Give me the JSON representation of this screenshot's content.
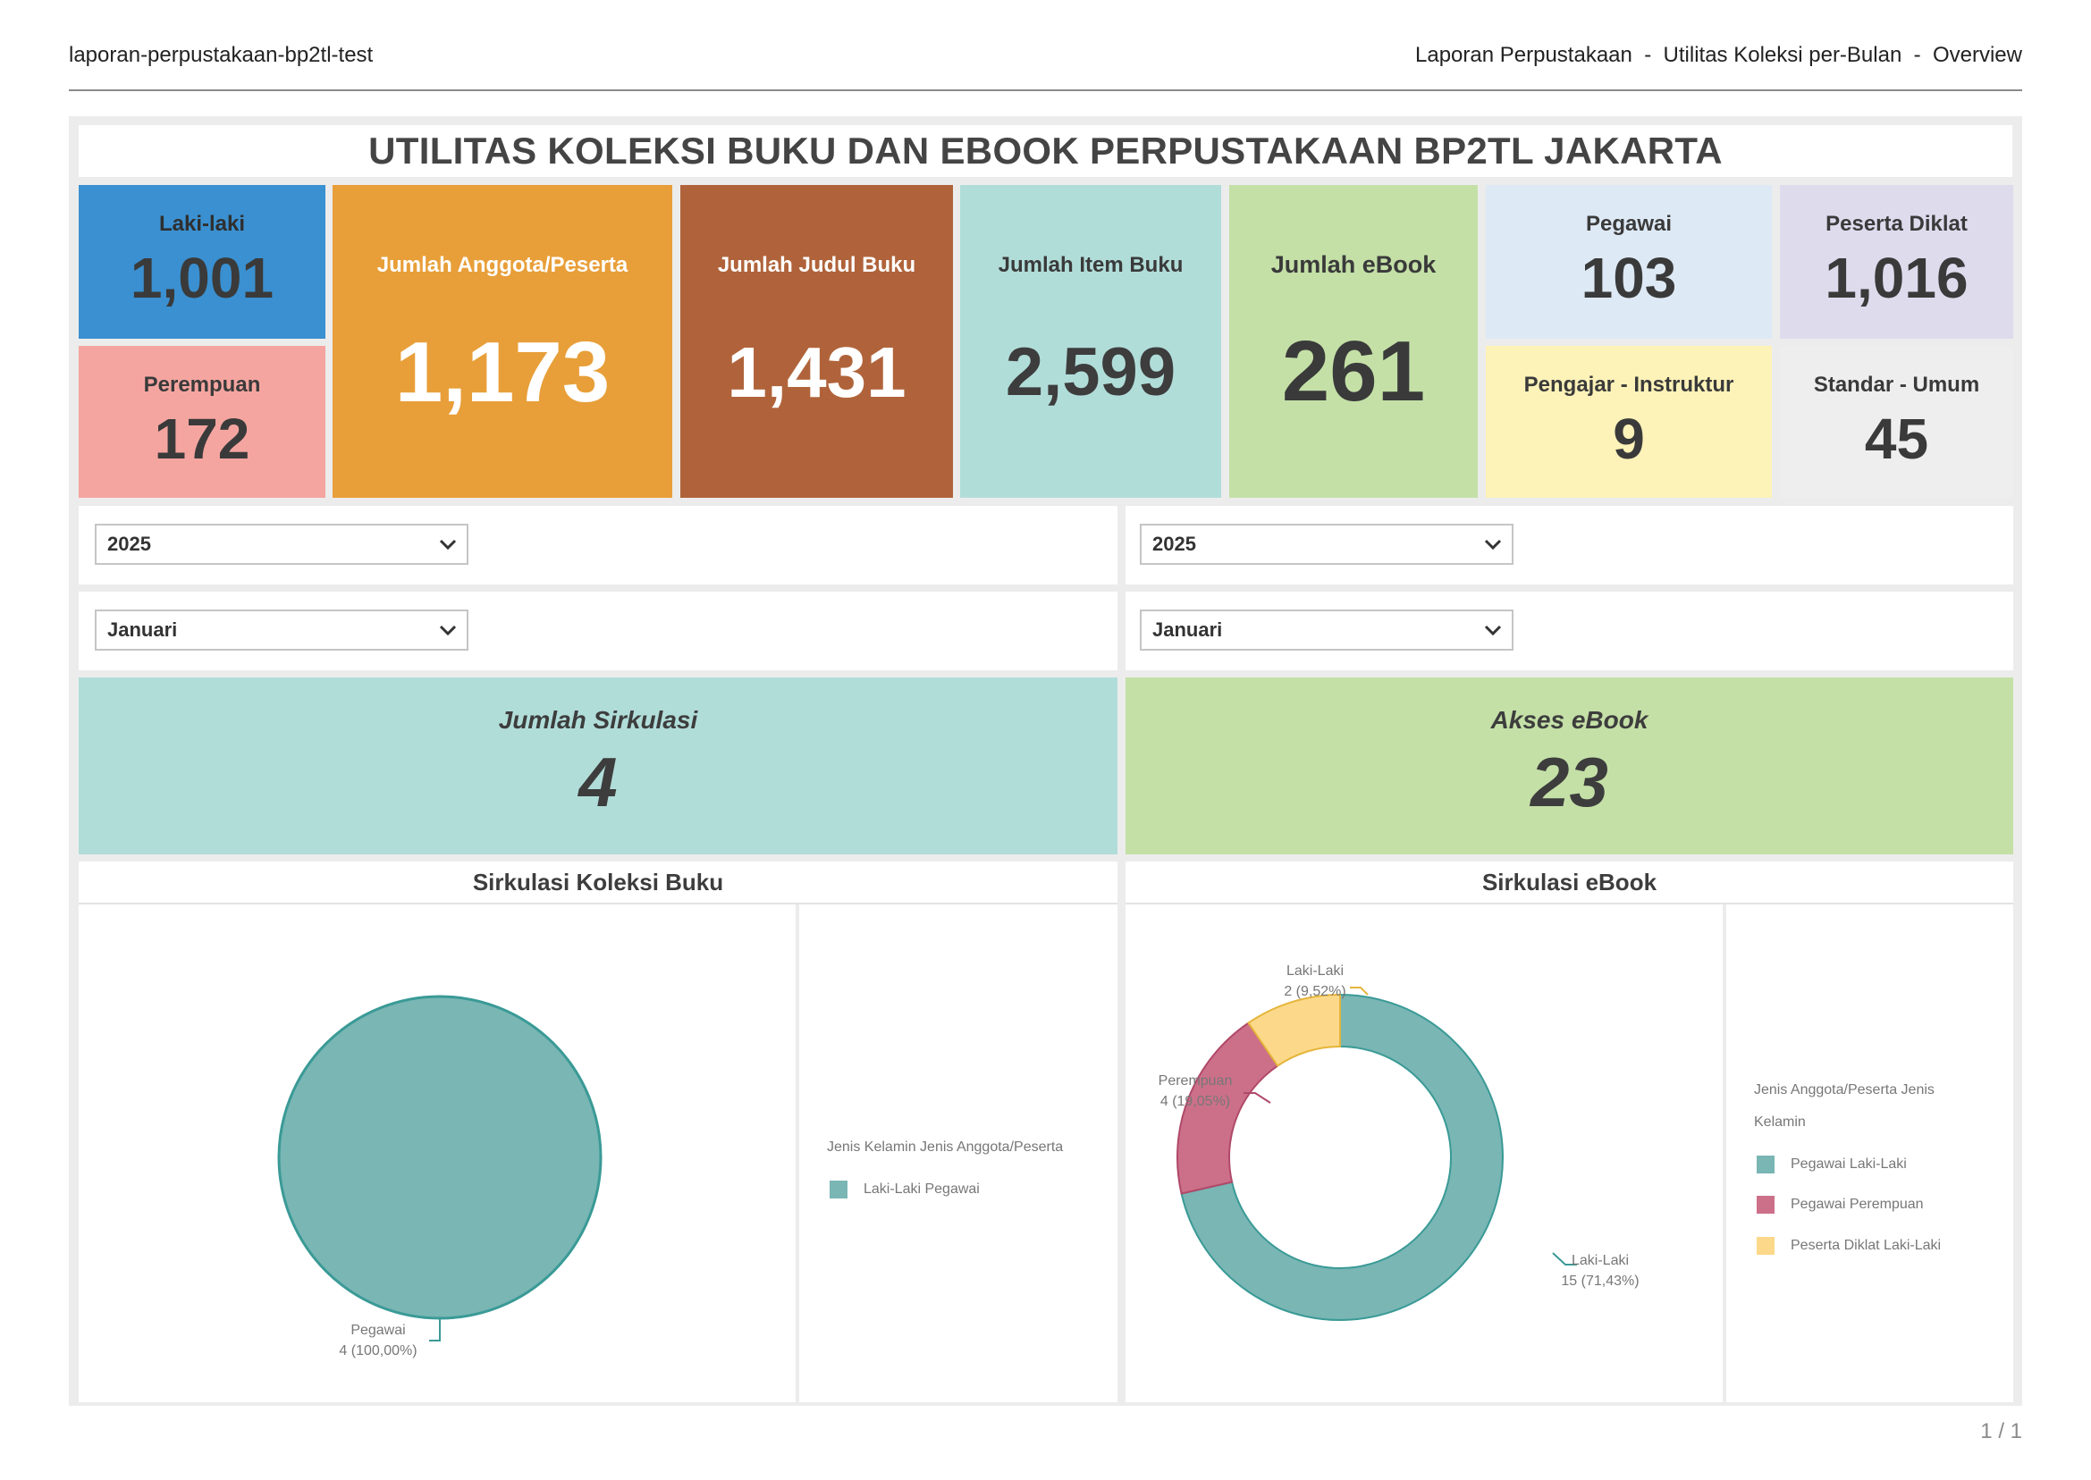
{
  "header": {
    "left": "laporan-perpustakaan-bp2tl-test",
    "right": "Laporan Perpustakaan  -  Utilitas Koleksi per-Bulan  -  Overview"
  },
  "title": "UTILITAS KOLEKSI BUKU DAN EBOOK PERPUSTAKAAN BP2TL JAKARTA",
  "cards": {
    "laki": {
      "label": "Laki-laki",
      "value": "1,001",
      "color": "#3a90d0"
    },
    "perempuan": {
      "label": "Perempuan",
      "value": "172",
      "color": "#f5a5a0"
    },
    "anggota": {
      "label": "Jumlah Anggota/Peserta",
      "value": "1,173",
      "color": "#e89f39"
    },
    "judul": {
      "label": "Jumlah Judul Buku",
      "value": "1,431",
      "color": "#b0633a"
    },
    "item": {
      "label": "Jumlah Item Buku",
      "value": "2,599",
      "color": "#b1ddd9"
    },
    "ebook": {
      "label": "Jumlah eBook",
      "value": "261",
      "color": "#c4e0a7"
    },
    "pegawai": {
      "label": "Pegawai",
      "value": "103",
      "color": "#dde9f4"
    },
    "diklat": {
      "label": "Peserta Diklat",
      "value": "1,016",
      "color": "#dedbed"
    },
    "pengajar": {
      "label": "Pengajar - Instruktur",
      "value": "9",
      "color": "#fdf2b8"
    },
    "umum": {
      "label": "Standar - Umum",
      "value": "45",
      "color": "#eeeeee"
    }
  },
  "filters": {
    "left_year": "2025",
    "left_month": "Januari",
    "right_year": "2025",
    "right_month": "Januari"
  },
  "kpis": {
    "sirkulasi": {
      "label": "Jumlah Sirkulasi",
      "value": "4"
    },
    "akses": {
      "label": "Akses eBook",
      "value": "23"
    }
  },
  "charts": {
    "buku": {
      "title": "Sirkulasi Koleksi Buku",
      "legend_title": "Jenis Kelamin Jenis Anggota/Peserta",
      "legend": [
        "Laki-Laki Pegawai"
      ],
      "slice_labels": [
        {
          "l1": "Pegawai",
          "l2": "4 (100,00%)"
        }
      ]
    },
    "ebook": {
      "title": "Sirkulasi eBook",
      "legend_title_1": "Jenis Anggota/Peserta Jenis",
      "legend_title_2": "Kelamin",
      "legend": [
        "Pegawai Laki-Laki",
        "Pegawai Perempuan",
        "Peserta Diklat Laki-Laki"
      ],
      "slice_labels": [
        {
          "l1": "Laki-Laki",
          "l2": "15 (71,43%)"
        },
        {
          "l1": "Perempuan",
          "l2": "4 (19,05%)"
        },
        {
          "l1": "Laki-Laki",
          "l2": "2 (9,52%)"
        }
      ]
    }
  },
  "chart_data": [
    {
      "type": "pie",
      "title": "Sirkulasi Koleksi Buku",
      "categories": [
        "Pegawai"
      ],
      "values": [
        4
      ],
      "percent": [
        100.0
      ],
      "colors": [
        "#79b6b4"
      ]
    },
    {
      "type": "pie",
      "title": "Sirkulasi eBook",
      "categories": [
        "Laki-Laki",
        "Perempuan",
        "Laki-Laki"
      ],
      "series_names": [
        "Pegawai Laki-Laki",
        "Pegawai Perempuan",
        "Peserta Diklat Laki-Laki"
      ],
      "values": [
        15,
        4,
        2
      ],
      "percent": [
        71.43,
        19.05,
        9.52
      ],
      "colors": [
        "#79b6b4",
        "#cc7089",
        "#fcd98a"
      ]
    }
  ],
  "footer": {
    "page": "1 / 1"
  }
}
